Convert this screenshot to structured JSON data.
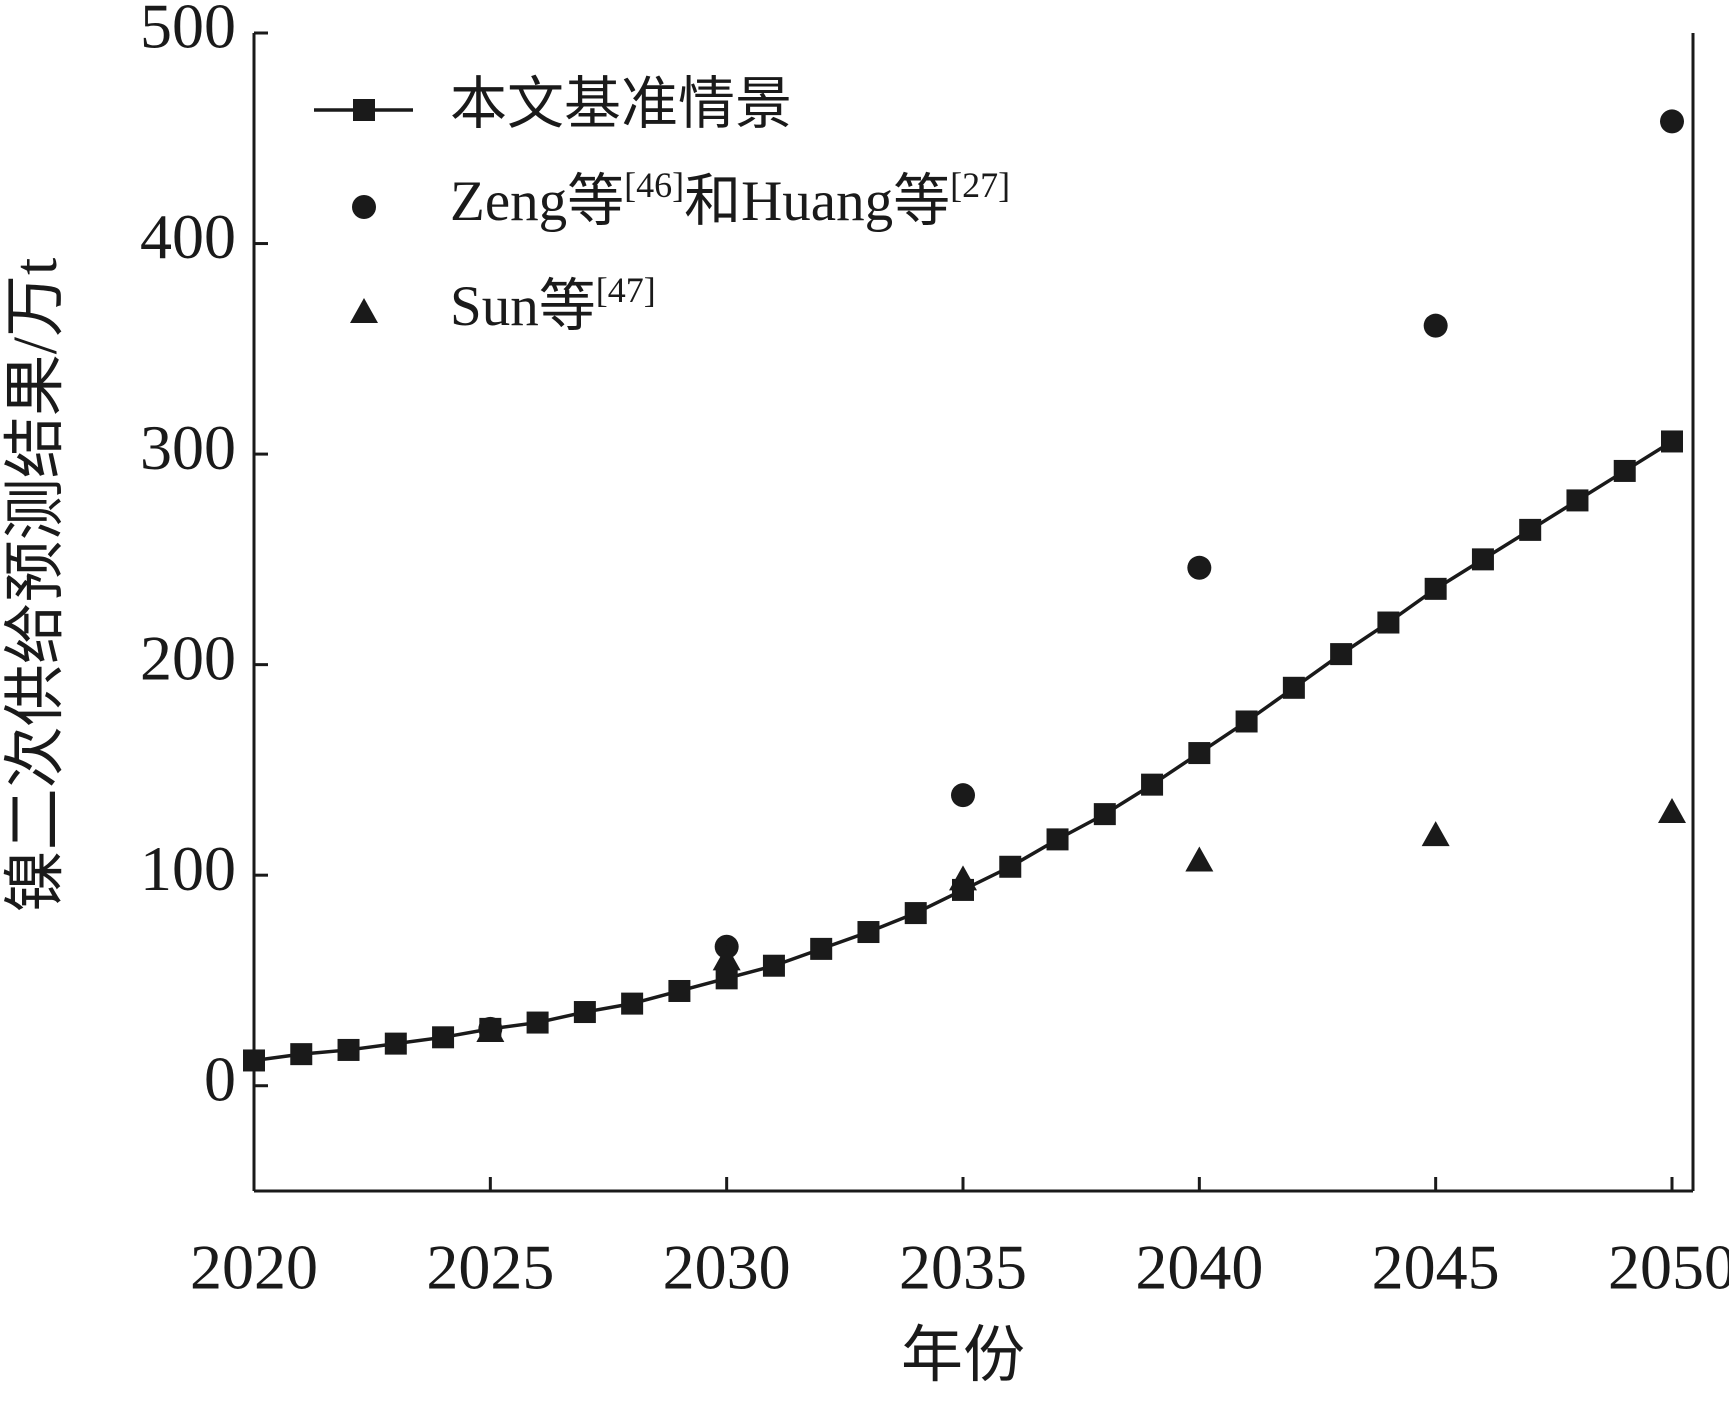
{
  "chart_data": {
    "type": "line",
    "x_label": "年份",
    "y_label": "镍二次供给预测结果/万t",
    "x": [
      2020,
      2021,
      2022,
      2023,
      2024,
      2025,
      2026,
      2027,
      2028,
      2029,
      2030,
      2031,
      2032,
      2033,
      2034,
      2035,
      2036,
      2037,
      2038,
      2039,
      2040,
      2041,
      2042,
      2043,
      2044,
      2045,
      2046,
      2047,
      2048,
      2049,
      2050
    ],
    "series": [
      {
        "name": "本文基准情景",
        "color": "#1a1a1a",
        "marker": "square",
        "values": [
          12,
          15,
          17,
          20,
          23,
          27,
          30,
          35,
          39,
          45,
          51,
          57,
          65,
          73,
          82,
          93,
          104,
          117,
          129,
          143,
          158,
          173,
          189,
          205,
          220,
          236,
          250,
          264,
          278,
          292,
          306
        ]
      },
      {
        "name": "Zeng等[46]和Huang等[27]",
        "color": "#1a1a1a",
        "marker": "circle",
        "x": [
          2025,
          2030,
          2035,
          2040,
          2045,
          2050
        ],
        "values": [
          27,
          66,
          138,
          246,
          361,
          458
        ]
      },
      {
        "name": "Sun等[47]",
        "color": "#1a1a1a",
        "marker": "triangle",
        "x": [
          2025,
          2030,
          2035,
          2040,
          2045,
          2050
        ],
        "values": [
          26,
          60,
          98,
          107,
          119,
          130
        ]
      }
    ],
    "xlim": [
      2020,
      2050
    ],
    "xticks": [
      2020,
      2025,
      2030,
      2035,
      2040,
      2045,
      2050
    ],
    "ylim": [
      -50,
      500
    ],
    "yticks": [
      0,
      100,
      200,
      300,
      400,
      500
    ],
    "legend": "top-left"
  }
}
